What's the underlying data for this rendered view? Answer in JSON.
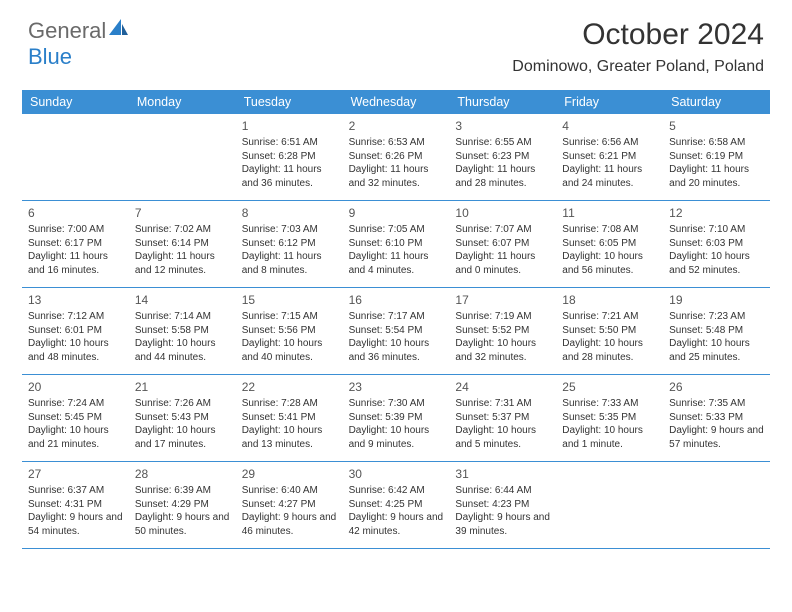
{
  "brand": {
    "text1": "General",
    "text2": "Blue"
  },
  "title": "October 2024",
  "location": "Dominowo, Greater Poland, Poland",
  "colors": {
    "header_bg": "#3b8fd4",
    "header_text": "#ffffff",
    "border": "#3b8fd4",
    "text": "#333333",
    "logo_blue": "#2a7fc9",
    "logo_gray": "#6a6a6a",
    "background": "#ffffff"
  },
  "day_names": [
    "Sunday",
    "Monday",
    "Tuesday",
    "Wednesday",
    "Thursday",
    "Friday",
    "Saturday"
  ],
  "weeks": [
    [
      null,
      null,
      {
        "n": "1",
        "sr": "6:51 AM",
        "ss": "6:28 PM",
        "dl": "11 hours and 36 minutes."
      },
      {
        "n": "2",
        "sr": "6:53 AM",
        "ss": "6:26 PM",
        "dl": "11 hours and 32 minutes."
      },
      {
        "n": "3",
        "sr": "6:55 AM",
        "ss": "6:23 PM",
        "dl": "11 hours and 28 minutes."
      },
      {
        "n": "4",
        "sr": "6:56 AM",
        "ss": "6:21 PM",
        "dl": "11 hours and 24 minutes."
      },
      {
        "n": "5",
        "sr": "6:58 AM",
        "ss": "6:19 PM",
        "dl": "11 hours and 20 minutes."
      }
    ],
    [
      {
        "n": "6",
        "sr": "7:00 AM",
        "ss": "6:17 PM",
        "dl": "11 hours and 16 minutes."
      },
      {
        "n": "7",
        "sr": "7:02 AM",
        "ss": "6:14 PM",
        "dl": "11 hours and 12 minutes."
      },
      {
        "n": "8",
        "sr": "7:03 AM",
        "ss": "6:12 PM",
        "dl": "11 hours and 8 minutes."
      },
      {
        "n": "9",
        "sr": "7:05 AM",
        "ss": "6:10 PM",
        "dl": "11 hours and 4 minutes."
      },
      {
        "n": "10",
        "sr": "7:07 AM",
        "ss": "6:07 PM",
        "dl": "11 hours and 0 minutes."
      },
      {
        "n": "11",
        "sr": "7:08 AM",
        "ss": "6:05 PM",
        "dl": "10 hours and 56 minutes."
      },
      {
        "n": "12",
        "sr": "7:10 AM",
        "ss": "6:03 PM",
        "dl": "10 hours and 52 minutes."
      }
    ],
    [
      {
        "n": "13",
        "sr": "7:12 AM",
        "ss": "6:01 PM",
        "dl": "10 hours and 48 minutes."
      },
      {
        "n": "14",
        "sr": "7:14 AM",
        "ss": "5:58 PM",
        "dl": "10 hours and 44 minutes."
      },
      {
        "n": "15",
        "sr": "7:15 AM",
        "ss": "5:56 PM",
        "dl": "10 hours and 40 minutes."
      },
      {
        "n": "16",
        "sr": "7:17 AM",
        "ss": "5:54 PM",
        "dl": "10 hours and 36 minutes."
      },
      {
        "n": "17",
        "sr": "7:19 AM",
        "ss": "5:52 PM",
        "dl": "10 hours and 32 minutes."
      },
      {
        "n": "18",
        "sr": "7:21 AM",
        "ss": "5:50 PM",
        "dl": "10 hours and 28 minutes."
      },
      {
        "n": "19",
        "sr": "7:23 AM",
        "ss": "5:48 PM",
        "dl": "10 hours and 25 minutes."
      }
    ],
    [
      {
        "n": "20",
        "sr": "7:24 AM",
        "ss": "5:45 PM",
        "dl": "10 hours and 21 minutes."
      },
      {
        "n": "21",
        "sr": "7:26 AM",
        "ss": "5:43 PM",
        "dl": "10 hours and 17 minutes."
      },
      {
        "n": "22",
        "sr": "7:28 AM",
        "ss": "5:41 PM",
        "dl": "10 hours and 13 minutes."
      },
      {
        "n": "23",
        "sr": "7:30 AM",
        "ss": "5:39 PM",
        "dl": "10 hours and 9 minutes."
      },
      {
        "n": "24",
        "sr": "7:31 AM",
        "ss": "5:37 PM",
        "dl": "10 hours and 5 minutes."
      },
      {
        "n": "25",
        "sr": "7:33 AM",
        "ss": "5:35 PM",
        "dl": "10 hours and 1 minute."
      },
      {
        "n": "26",
        "sr": "7:35 AM",
        "ss": "5:33 PM",
        "dl": "9 hours and 57 minutes."
      }
    ],
    [
      {
        "n": "27",
        "sr": "6:37 AM",
        "ss": "4:31 PM",
        "dl": "9 hours and 54 minutes."
      },
      {
        "n": "28",
        "sr": "6:39 AM",
        "ss": "4:29 PM",
        "dl": "9 hours and 50 minutes."
      },
      {
        "n": "29",
        "sr": "6:40 AM",
        "ss": "4:27 PM",
        "dl": "9 hours and 46 minutes."
      },
      {
        "n": "30",
        "sr": "6:42 AM",
        "ss": "4:25 PM",
        "dl": "9 hours and 42 minutes."
      },
      {
        "n": "31",
        "sr": "6:44 AM",
        "ss": "4:23 PM",
        "dl": "9 hours and 39 minutes."
      },
      null,
      null
    ]
  ],
  "labels": {
    "sunrise": "Sunrise:",
    "sunset": "Sunset:",
    "daylight": "Daylight:"
  }
}
